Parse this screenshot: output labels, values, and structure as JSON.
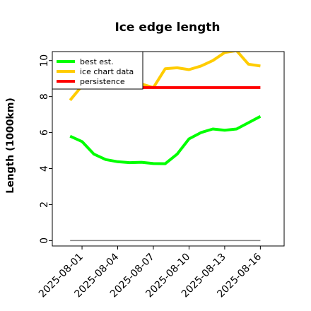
{
  "chart_data": {
    "type": "line",
    "title": "Ice edge length",
    "xlabel": "",
    "ylabel": "Length (1000km)",
    "ylim": [
      -0.3,
      10.5
    ],
    "yticks": [
      0,
      2,
      4,
      6,
      8,
      10
    ],
    "xlim": [
      "2025-07-29T12:00",
      "2025-08-18"
    ],
    "xticks": [
      "2025-08-01",
      "2025-08-04",
      "2025-08-07",
      "2025-08-10",
      "2025-08-13",
      "2025-08-16"
    ],
    "grid": false,
    "legend_position": "top-left",
    "series": [
      {
        "name": "best est.",
        "color": "#00ff00",
        "x": [
          "2025-07-31",
          "2025-08-01",
          "2025-08-02",
          "2025-08-03",
          "2025-08-04",
          "2025-08-05",
          "2025-08-06",
          "2025-08-07",
          "2025-08-08",
          "2025-08-09",
          "2025-08-10",
          "2025-08-11",
          "2025-08-12",
          "2025-08-13",
          "2025-08-14",
          "2025-08-15",
          "2025-08-16"
        ],
        "values": [
          5.8,
          5.5,
          4.8,
          4.5,
          4.38,
          4.33,
          4.35,
          4.28,
          4.27,
          4.8,
          5.65,
          6.0,
          6.2,
          6.13,
          6.2,
          6.55,
          6.9
        ]
      },
      {
        "name": "ice chart data",
        "color": "#ffcc00",
        "x": [
          "2025-07-31",
          "2025-08-01",
          "2025-08-02",
          "2025-08-03",
          "2025-08-04",
          "2025-08-05",
          "2025-08-06",
          "2025-08-07",
          "2025-08-08",
          "2025-08-09",
          "2025-08-10",
          "2025-08-11",
          "2025-08-12",
          "2025-08-13",
          "2025-08-14",
          "2025-08-15",
          "2025-08-16"
        ],
        "values": [
          7.8,
          8.6,
          8.7,
          8.7,
          8.7,
          8.7,
          8.7,
          8.5,
          9.55,
          9.6,
          9.5,
          9.7,
          10.0,
          10.45,
          10.55,
          9.8,
          9.7
        ]
      },
      {
        "name": "persistence",
        "color": "#ff0000",
        "x": [
          "2025-08-04",
          "2025-08-16"
        ],
        "values": [
          8.5,
          8.5
        ]
      },
      {
        "color": "#808080",
        "x": [
          "2025-07-31",
          "2025-08-16"
        ],
        "values": [
          0,
          0
        ]
      }
    ]
  }
}
